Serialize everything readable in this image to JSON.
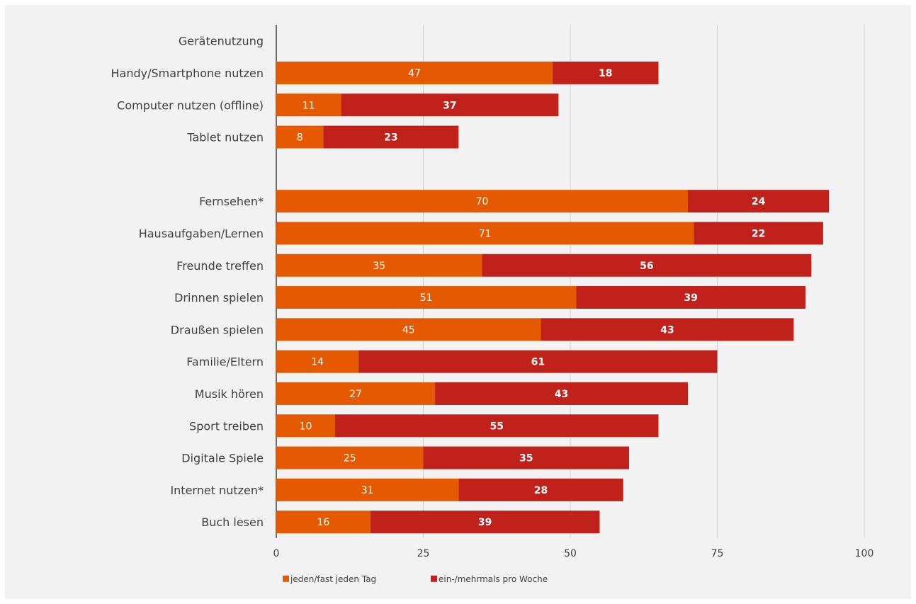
{
  "chart_data": {
    "type": "bar",
    "orientation": "horizontal",
    "stacked": true,
    "categories": [
      "Gerätenutzung",
      "Handy/Smartphone nutzen",
      "Computer nutzen (offline)",
      "Tablet nutzen",
      "",
      "Fernsehen*",
      "Hausaufgaben/Lernen",
      "Freunde treffen",
      "Drinnen spielen",
      "Draußen spielen",
      "Familie/Eltern",
      "Musik hören",
      "Sport treiben",
      "Digitale Spiele",
      "Internet nutzen*",
      "Buch lesen"
    ],
    "series": [
      {
        "name": "jeden/fast jeden Tag",
        "color": "#e55a00",
        "values": [
          null,
          47,
          11,
          8,
          null,
          70,
          71,
          35,
          51,
          45,
          14,
          27,
          10,
          25,
          31,
          16
        ]
      },
      {
        "name": "ein-/mehrmals pro Woche",
        "color": "#c0211a",
        "values": [
          null,
          18,
          37,
          23,
          null,
          24,
          22,
          56,
          39,
          43,
          61,
          43,
          55,
          35,
          28,
          39
        ]
      }
    ],
    "xlim": [
      0,
      100
    ],
    "xticks": [
      0,
      25,
      50,
      75,
      100
    ],
    "grid": true,
    "legend_position": "bottom"
  }
}
